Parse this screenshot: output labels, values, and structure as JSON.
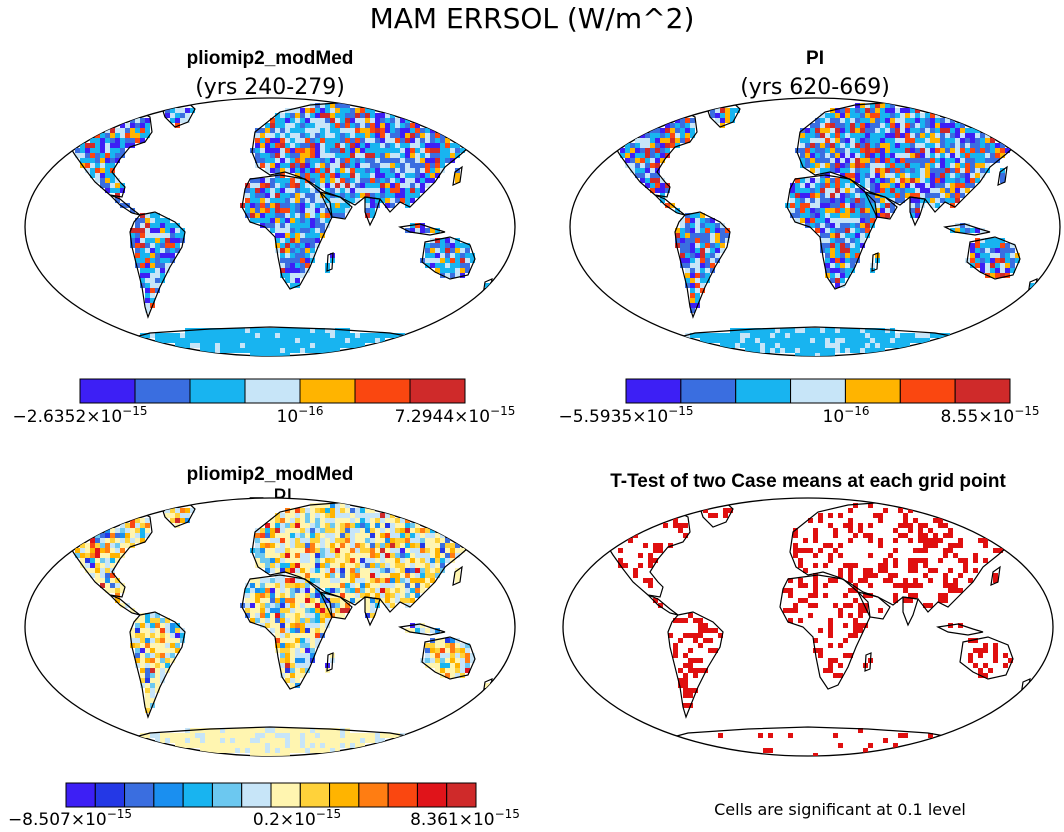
{
  "figure": {
    "main_title": "MAM ERRSOL (W/m^2)"
  },
  "panels": [
    {
      "id": "p1",
      "title": "pliomip2_modMed",
      "subtitle": "(yrs 240-279)",
      "colorbar": {
        "colors": [
          "#3d1ff5",
          "#3a6ee0",
          "#18b4f0",
          "#c7e5f8",
          "#ffb400",
          "#fa4710",
          "#cf2a2a"
        ],
        "min_label": {
          "mant": "−2.6352×10",
          "exp": "−15"
        },
        "mid_label": {
          "mant": "10",
          "exp": "−16"
        },
        "max_label": {
          "mant": "7.2944×10",
          "exp": "−15"
        }
      }
    },
    {
      "id": "p2",
      "title": "PI",
      "subtitle": "(yrs 620-669)",
      "colorbar": {
        "colors": [
          "#3d1ff5",
          "#3a6ee0",
          "#18b4f0",
          "#c7e5f8",
          "#ffb400",
          "#fa4710",
          "#cf2a2a"
        ],
        "min_label": {
          "mant": "−5.5935×10",
          "exp": "−15"
        },
        "mid_label": {
          "mant": "10",
          "exp": "−16"
        },
        "max_label": {
          "mant": "8.55×10",
          "exp": "−15"
        }
      }
    },
    {
      "id": "p3",
      "title": "pliomip2_modMed",
      "subtitle": "− PI",
      "colorbar": {
        "colors": [
          "#3d1ff5",
          "#2438e6",
          "#3a6ee0",
          "#1a8ff0",
          "#18b4f0",
          "#6cc8f0",
          "#c7e5f8",
          "#fff5b0",
          "#ffd23a",
          "#ffb400",
          "#ff7d12",
          "#fa4710",
          "#e0141a",
          "#cf2a2a"
        ],
        "min_label": {
          "mant": "−8.507×10",
          "exp": "−15"
        },
        "mid_label": {
          "mant": "0.2×10",
          "exp": "−15"
        },
        "max_label": {
          "mant": "8.361×10",
          "exp": "−15"
        }
      }
    },
    {
      "id": "p4",
      "title": "T-Test of two Case means at each grid point",
      "subtitle": "",
      "note": "Cells are significant at 0.1 level"
    }
  ]
}
